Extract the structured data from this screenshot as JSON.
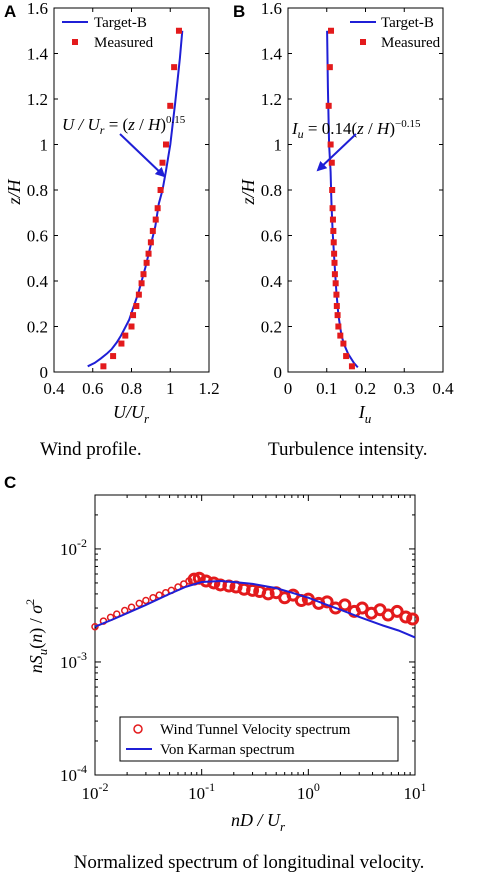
{
  "colors": {
    "target": "#1f1fd6",
    "measured": "#e31a1c",
    "axis": "#000000"
  },
  "chart_data": [
    {
      "panel": "A",
      "type": "scatter",
      "caption": "Wind profile.",
      "xlabel": "U/U_r",
      "ylabel": "z/H",
      "xlim": [
        0.4,
        1.2
      ],
      "ylim": [
        0,
        1.6
      ],
      "xticks": [
        "0.4",
        "0.6",
        "0.8",
        "1",
        "1.2"
      ],
      "yticks": [
        "0",
        "0.2",
        "0.4",
        "0.6",
        "0.8",
        "1",
        "1.2",
        "1.4",
        "1.6"
      ],
      "legend": [
        "Target-B",
        "Measured"
      ],
      "legend_position": "top-left",
      "annotation": "U / U_r = (z / H)^0.15",
      "series": [
        {
          "name": "Target-B",
          "kind": "line",
          "x": [
            0.574,
            0.61,
            0.642,
            0.672,
            0.697,
            0.724,
            0.746,
            0.788,
            0.836,
            0.872,
            0.897,
            0.923,
            0.941,
            0.96,
            0.977,
            1.0,
            1.025,
            1.05,
            1.062
          ],
          "y": [
            0.025,
            0.04,
            0.06,
            0.08,
            0.1,
            0.13,
            0.16,
            0.23,
            0.35,
            0.46,
            0.55,
            0.64,
            0.74,
            0.8,
            0.88,
            1.0,
            1.18,
            1.38,
            1.5
          ]
        },
        {
          "name": "Measured",
          "kind": "marker",
          "x": [
            0.655,
            0.705,
            0.748,
            0.768,
            0.8,
            0.808,
            0.825,
            0.838,
            0.852,
            0.862,
            0.878,
            0.888,
            0.9,
            0.91,
            0.925,
            0.935,
            0.95,
            0.96,
            0.978,
            1.0,
            1.02,
            1.045
          ],
          "y": [
            0.025,
            0.07,
            0.125,
            0.16,
            0.2,
            0.25,
            0.29,
            0.34,
            0.39,
            0.43,
            0.48,
            0.52,
            0.57,
            0.62,
            0.67,
            0.72,
            0.8,
            0.92,
            1.0,
            1.17,
            1.34,
            1.5
          ]
        }
      ]
    },
    {
      "panel": "B",
      "type": "scatter",
      "caption": "Turbulence intensity.",
      "xlabel": "I_u",
      "ylabel": "z/H",
      "xlim": [
        0,
        0.4
      ],
      "ylim": [
        0,
        1.6
      ],
      "xticks": [
        "0",
        "0.1",
        "0.2",
        "0.3",
        "0.4"
      ],
      "yticks": [
        "0",
        "0.2",
        "0.4",
        "0.6",
        "0.8",
        "1",
        "1.2",
        "1.4",
        "1.6"
      ],
      "legend": [
        "Target-B",
        "Measured"
      ],
      "legend_position": "top-right",
      "annotation": "I_u = 0.14(z / H)^-0.15",
      "series": [
        {
          "name": "Target-B",
          "kind": "line",
          "x": [
            0.18,
            0.17,
            0.155,
            0.145,
            0.138,
            0.13,
            0.125,
            0.12,
            0.115,
            0.112,
            0.11,
            0.106,
            0.103,
            0.101
          ],
          "y": [
            0.02,
            0.04,
            0.08,
            0.12,
            0.16,
            0.25,
            0.35,
            0.48,
            0.62,
            0.75,
            0.88,
            1.0,
            1.25,
            1.5
          ]
        },
        {
          "name": "Measured",
          "kind": "marker",
          "x": [
            0.165,
            0.15,
            0.143,
            0.135,
            0.13,
            0.128,
            0.126,
            0.125,
            0.123,
            0.121,
            0.12,
            0.119,
            0.118,
            0.117,
            0.116,
            0.115,
            0.114,
            0.113,
            0.11,
            0.105,
            0.108,
            0.111
          ],
          "y": [
            0.025,
            0.07,
            0.125,
            0.16,
            0.2,
            0.25,
            0.29,
            0.34,
            0.39,
            0.43,
            0.48,
            0.52,
            0.57,
            0.62,
            0.67,
            0.72,
            0.8,
            0.92,
            1.0,
            1.17,
            1.34,
            1.5
          ]
        }
      ]
    },
    {
      "panel": "C",
      "type": "scatter",
      "caption": "Normalized spectrum of longitudinal velocity.",
      "xlabel": "nD / U_r",
      "ylabel": "nS_u(n) / σ²",
      "xscale": "log",
      "yscale": "log",
      "xlim": [
        0.01,
        10
      ],
      "ylim": [
        0.0001,
        0.03
      ],
      "xticks": [
        {
          "base": "10",
          "exp": "-2"
        },
        {
          "base": "10",
          "exp": "-1"
        },
        {
          "base": "10",
          "exp": "0"
        },
        {
          "base": "10",
          "exp": "1"
        }
      ],
      "yticks": [
        {
          "base": "10",
          "exp": "-4"
        },
        {
          "base": "10",
          "exp": "-3"
        },
        {
          "base": "10",
          "exp": "-2"
        }
      ],
      "legend": [
        "Wind Tunnel Velocity spectrum",
        "Von Karman spectrum"
      ],
      "legend_position": "bottom-left",
      "series": [
        {
          "name": "Wind Tunnel Velocity spectrum",
          "kind": "circle",
          "x": [
            0.01,
            0.012,
            0.014,
            0.016,
            0.019,
            0.022,
            0.026,
            0.03,
            0.035,
            0.04,
            0.046,
            0.052,
            0.06,
            0.068,
            0.076,
            0.085,
            0.095,
            0.11,
            0.13,
            0.15,
            0.18,
            0.21,
            0.25,
            0.3,
            0.35,
            0.42,
            0.5,
            0.6,
            0.72,
            0.86,
            1.0,
            1.25,
            1.5,
            1.8,
            2.2,
            2.7,
            3.2,
            3.9,
            4.7,
            5.6,
            6.8,
            8.2,
            9.5
          ],
          "y": [
            0.00205,
            0.0023,
            0.00248,
            0.00265,
            0.00285,
            0.00305,
            0.0033,
            0.0035,
            0.0037,
            0.0039,
            0.0041,
            0.0043,
            0.0046,
            0.0049,
            0.0052,
            0.0054,
            0.0055,
            0.0052,
            0.005,
            0.0048,
            0.0047,
            0.0046,
            0.0044,
            0.0043,
            0.0042,
            0.004,
            0.0041,
            0.0037,
            0.0039,
            0.0035,
            0.0036,
            0.0033,
            0.0034,
            0.003,
            0.0032,
            0.0028,
            0.003,
            0.0027,
            0.0029,
            0.0026,
            0.0028,
            0.0025,
            0.0024
          ]
        },
        {
          "name": "Von Karman spectrum",
          "kind": "line",
          "x": [
            0.01,
            0.015,
            0.02,
            0.03,
            0.05,
            0.07,
            0.1,
            0.15,
            0.2,
            0.3,
            0.5,
            0.7,
            1.0,
            1.5,
            2.0,
            3.0,
            5.0,
            7.0,
            10.0
          ],
          "y": [
            0.00205,
            0.0024,
            0.0027,
            0.0032,
            0.004,
            0.0046,
            0.0051,
            0.0052,
            0.0051,
            0.0049,
            0.0045,
            0.0041,
            0.0037,
            0.0032,
            0.0029,
            0.0025,
            0.0021,
            0.0019,
            0.00165
          ]
        }
      ]
    }
  ]
}
